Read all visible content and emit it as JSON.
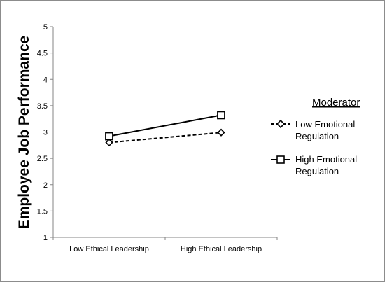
{
  "chart_data": {
    "type": "line",
    "x": [
      "Low Ethical Leadership",
      "High Ethical Leadership"
    ],
    "ylabel": "Employee Job Performance",
    "xlabel": "",
    "ylim": [
      1,
      5
    ],
    "yticks": [
      "1",
      "1.5",
      "2",
      "2.5",
      "3",
      "3.5",
      "4",
      "4.5",
      "5"
    ],
    "grid": false,
    "legend": {
      "title": "Moderator",
      "placement": "right",
      "entries": [
        {
          "line1": "Low Emotional",
          "line2": "Regulation"
        },
        {
          "line1": "High Emotional",
          "line2": "Regulation"
        }
      ]
    },
    "series": [
      {
        "name": "Low Emotional Regulation",
        "values": [
          2.8,
          2.99
        ],
        "style": "dashed",
        "marker": "diamond",
        "color": "#000000"
      },
      {
        "name": "High Emotional Regulation",
        "values": [
          2.92,
          3.32
        ],
        "style": "solid",
        "marker": "square",
        "color": "#000000"
      }
    ]
  }
}
